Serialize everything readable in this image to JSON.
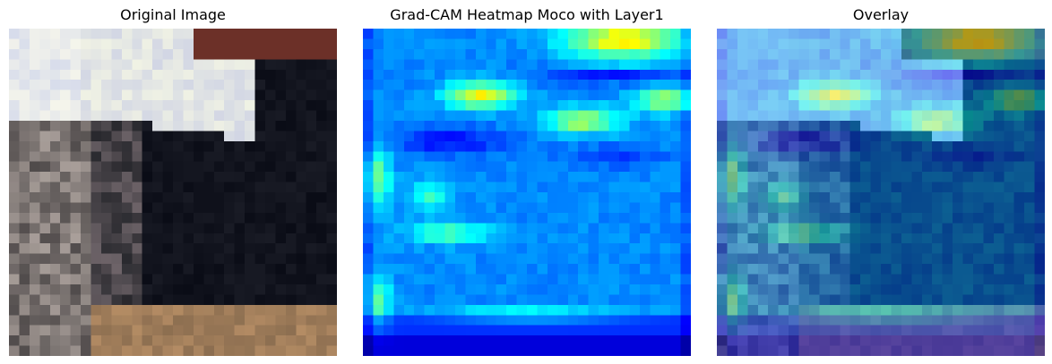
{
  "figure": {
    "panels": [
      {
        "title": "Original Image",
        "kind": "original",
        "image": "pixelated-cat-photo"
      },
      {
        "title": "Grad-CAM Heatmap Moco with Layer1",
        "kind": "heatmap",
        "image": "gradcam-heatmap"
      },
      {
        "title": "Overlay",
        "kind": "overlay",
        "image": "heatmap-overlay-on-photo"
      }
    ]
  },
  "chart_data": {
    "type": "heatmap",
    "title": "Grad-CAM Heatmap Moco with Layer1",
    "colormap": "jet",
    "grid": false,
    "axes_visible": false,
    "colors": {
      "low": "#00007f",
      "mid_low": "#0000ff",
      "mid": "#00ffff",
      "mid_high": "#ffff00",
      "high": "#7f0000"
    }
  }
}
